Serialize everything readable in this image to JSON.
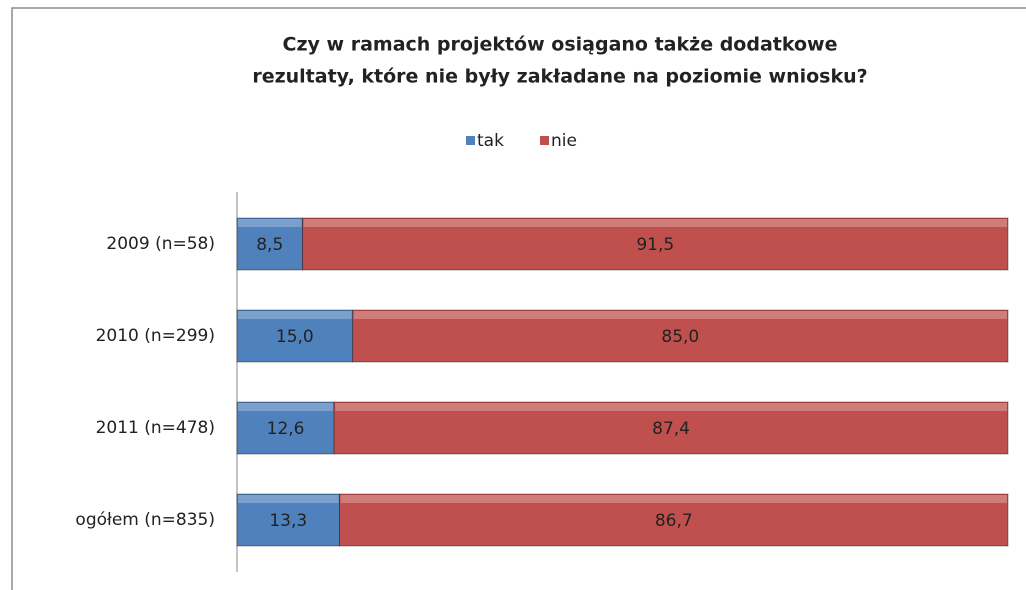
{
  "chart_data": {
    "type": "stacked_bar_horizontal",
    "title": [
      "Czy w ramach projektów osiągano także dodatkowe",
      "rezultaty, które nie były zakładane na poziomie wniosku?"
    ],
    "categories": [
      "2009 (n=58)",
      "2010 (n=299)",
      "2011 (n=478)",
      "ogółem (n=835)"
    ],
    "series": [
      {
        "name": "tak",
        "color": "#4f81bd",
        "values": [
          8.5,
          15.0,
          12.6,
          13.3
        ],
        "value_labels": [
          "8,5",
          "15,0",
          "12,6",
          "13,3"
        ]
      },
      {
        "name": "nie",
        "color": "#c0504d",
        "values": [
          91.5,
          85.0,
          87.4,
          86.7
        ],
        "value_labels": [
          "91,5",
          "85,0",
          "87,4",
          "86,7"
        ]
      }
    ],
    "xlim": [
      0,
      100
    ],
    "legend": "top"
  }
}
